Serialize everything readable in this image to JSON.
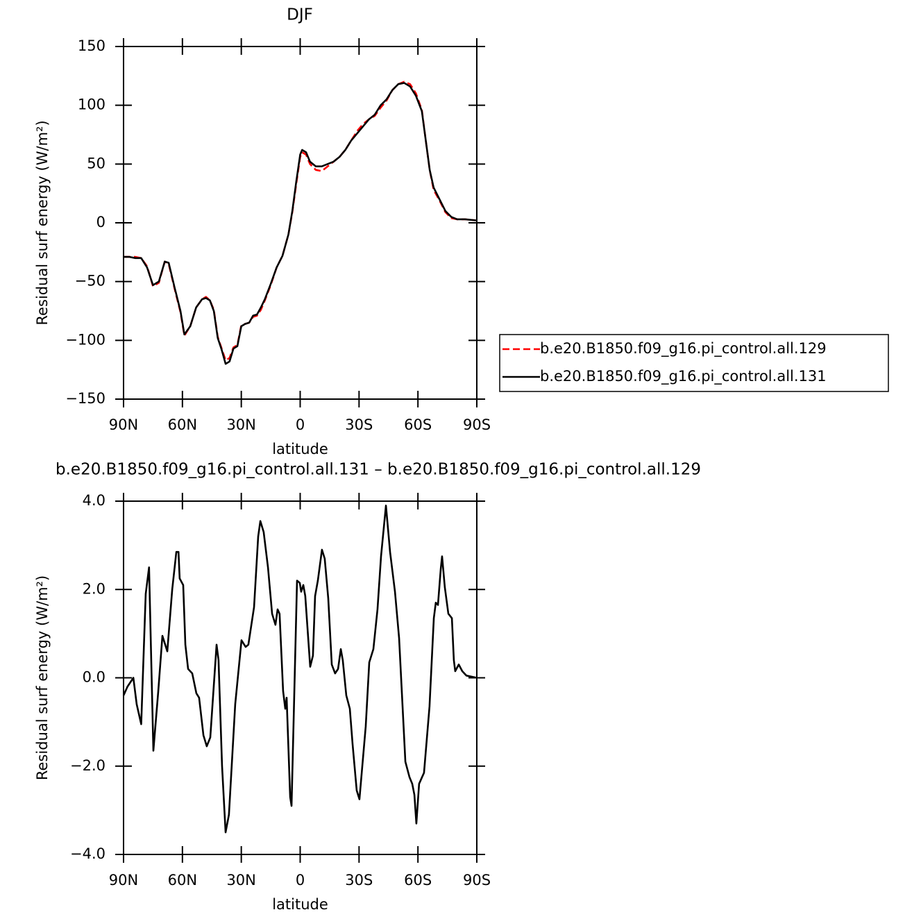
{
  "chart_data": [
    {
      "type": "line",
      "title": "DJF",
      "xlabel": "latitude",
      "ylabel": "Residual surf energy (W/m²)",
      "x": [
        90,
        87,
        84,
        81,
        78,
        75,
        72,
        69,
        67,
        64,
        61,
        59,
        56,
        53,
        50,
        48,
        46,
        44,
        42,
        40,
        38,
        36,
        34,
        32,
        30,
        28,
        26,
        24,
        22,
        20,
        18,
        15,
        12,
        9,
        6,
        4,
        2,
        0,
        -1,
        -3,
        -5,
        -8,
        -11,
        -14,
        -17,
        -20,
        -23,
        -26,
        -29,
        -32,
        -35,
        -38,
        -41,
        -44,
        -47,
        -50,
        -53,
        -56,
        -59,
        -62,
        -64,
        -66,
        -68,
        -71,
        -74,
        -77,
        -80,
        -84,
        -90
      ],
      "series": [
        {
          "name": "b.e20.B1850.f09_g16.pi_control.all.129",
          "color": "#ff0000",
          "dashed": true,
          "values": [
            -29,
            -29,
            -29,
            -30,
            -37,
            -54,
            -51,
            -33,
            -35,
            -56,
            -76,
            -96,
            -88,
            -72,
            -65,
            -63,
            -66,
            -74,
            -97,
            -107,
            -117,
            -115,
            -106,
            -104,
            -87,
            -86,
            -85,
            -80,
            -79,
            -74,
            -66,
            -53,
            -38,
            -28,
            -10,
            9,
            33,
            56,
            60,
            58,
            50,
            45,
            44,
            48,
            52,
            56,
            62,
            70,
            78,
            84,
            88,
            91,
            98,
            104,
            113,
            118,
            120,
            118,
            110,
            96,
            70,
            45,
            28,
            19,
            9,
            4,
            3,
            3,
            2
          ]
        },
        {
          "name": "b.e20.B1850.f09_g16.pi_control.all.131",
          "color": "#000000",
          "dashed": false,
          "values": [
            -29,
            -29,
            -30,
            -30,
            -38,
            -53,
            -50,
            -33,
            -34,
            -55,
            -75,
            -95,
            -88,
            -72,
            -65,
            -64,
            -66,
            -75,
            -98,
            -108,
            -120,
            -118,
            -107,
            -105,
            -88,
            -86,
            -85,
            -79,
            -78,
            -72,
            -65,
            -52,
            -38,
            -28,
            -10,
            10,
            35,
            58,
            62,
            60,
            52,
            48,
            48,
            50,
            52,
            56,
            62,
            70,
            76,
            82,
            88,
            92,
            100,
            105,
            113,
            118,
            119,
            116,
            108,
            95,
            70,
            45,
            30,
            20,
            10,
            5,
            3,
            3,
            2
          ]
        }
      ],
      "xlim": [
        90,
        -90
      ],
      "xticks": [
        {
          "value": 90,
          "label": "90N"
        },
        {
          "value": 60,
          "label": "60N"
        },
        {
          "value": 30,
          "label": "30N"
        },
        0,
        {
          "value": -30,
          "label": "30S"
        },
        {
          "value": -60,
          "label": "60S"
        },
        {
          "value": -90,
          "label": "90S"
        }
      ],
      "ylim": [
        -150,
        150
      ],
      "yticks": [
        {
          "value": -150,
          "label": "−150"
        },
        {
          "value": -100,
          "label": "−100"
        },
        {
          "value": -50,
          "label": "−50"
        },
        0,
        50,
        100,
        150
      ],
      "legend": "right"
    },
    {
      "type": "line",
      "title": "b.e20.B1850.f09_g16.pi_control.all.131 – b.e20.B1850.f09_g16.pi_control.all.129",
      "xlabel": "latitude",
      "ylabel": "Residual surf energy (W/m²)",
      "x": [
        90,
        88,
        85,
        83.3,
        81,
        78.7,
        77,
        74.8,
        72.3,
        70.2,
        67.7,
        65.2,
        63.1,
        62,
        61.4,
        59.6,
        58.5,
        57.1,
        55,
        52.9,
        51.5,
        49.3,
        47.6,
        45.8,
        42.6,
        41.6,
        39.8,
        38,
        36.3,
        33.1,
        29.9,
        27.8,
        26.4,
        23.5,
        21.4,
        20.3,
        18.6,
        16.4,
        14.3,
        12.6,
        11.5,
        10.5,
        8.7,
        7.6,
        6.9,
        5.1,
        4.4,
        1.6,
        0.2,
        -0.5,
        -1.6,
        -2.6,
        -5.1,
        -6.5,
        -7.6,
        -9,
        -11.1,
        -12.5,
        -14.3,
        -16.1,
        -17.8,
        -19.3,
        -20.7,
        -21.7,
        -23.5,
        -25.3,
        -26.7,
        -28.8,
        -30.2,
        -33.4,
        -35.2,
        -37.3,
        -39.4,
        -41.2,
        -43.7,
        -45.8,
        -48.3,
        -50.4,
        -53.6,
        -55.7,
        -57.1,
        -58.2,
        -59.2,
        -60.6,
        -63.1,
        -65.9,
        -68.1,
        -69.1,
        -70.2,
        -71.6,
        -72.3,
        -73.7,
        -75.5,
        -77.3,
        -78.3,
        -79,
        -80.8,
        -82.6,
        -84.7,
        -90
      ],
      "values": [
        -0.4,
        -0.2,
        0,
        -0.6,
        -1.05,
        1.9,
        2.5,
        -1.65,
        -0.3,
        0.95,
        0.6,
        2,
        2.85,
        2.85,
        2.25,
        2.1,
        0.75,
        0.2,
        0.1,
        -0.35,
        -0.45,
        -1.3,
        -1.55,
        -1.35,
        0.75,
        0.4,
        -2,
        -3.5,
        -3.1,
        -0.6,
        0.85,
        0.7,
        0.75,
        1.6,
        3.2,
        3.55,
        3.3,
        2.5,
        1.45,
        1.2,
        1.55,
        1.45,
        -0.3,
        -0.7,
        -0.45,
        -2.7,
        -2.9,
        2.2,
        2.15,
        1.95,
        2.1,
        1.85,
        0.25,
        0.5,
        1.85,
        2.2,
        2.9,
        2.7,
        1.8,
        0.3,
        0.1,
        0.2,
        0.65,
        0.4,
        -0.4,
        -0.7,
        -1.5,
        -2.55,
        -2.75,
        -1.1,
        0.35,
        0.65,
        1.55,
        2.75,
        3.9,
        2.85,
        1.95,
        0.9,
        -1.9,
        -2.25,
        -2.4,
        -2.65,
        -3.3,
        -2.4,
        -2.15,
        -0.65,
        1.35,
        1.7,
        1.65,
        2.45,
        2.75,
        2.05,
        1.45,
        1.35,
        0.4,
        0.15,
        0.3,
        0.15,
        0.05,
        0
      ],
      "color": "#000000",
      "xlim": [
        90,
        -90
      ],
      "xticks": [
        {
          "value": 90,
          "label": "90N"
        },
        {
          "value": 60,
          "label": "60N"
        },
        {
          "value": 30,
          "label": "30N"
        },
        0,
        {
          "value": -30,
          "label": "30S"
        },
        {
          "value": -60,
          "label": "60S"
        },
        {
          "value": -90,
          "label": "90S"
        }
      ],
      "ylim": [
        -4,
        4
      ],
      "yticks": [
        {
          "value": -4,
          "label": "−4.0"
        },
        {
          "value": -2,
          "label": "−2.0"
        },
        {
          "value": 0,
          "label": "0.0"
        },
        {
          "value": 2,
          "label": "2.0"
        },
        {
          "value": 4,
          "label": "4.0"
        }
      ]
    }
  ]
}
